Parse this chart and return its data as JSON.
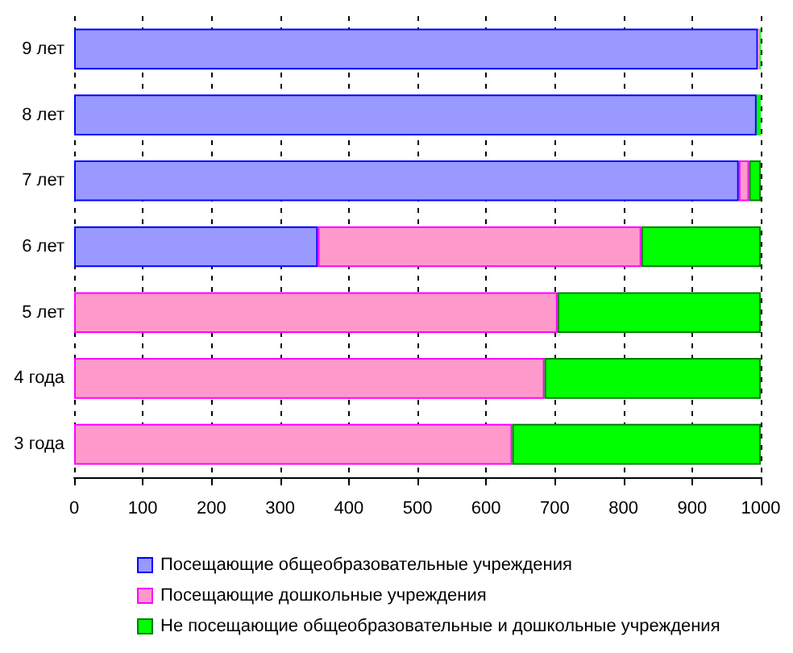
{
  "chart_data": {
    "type": "bar",
    "orientation": "horizontal",
    "stacked": true,
    "categories": [
      "9 лет",
      "8 лет",
      "7 лет",
      "6 лет",
      "5 лет",
      "4 года",
      "3 года"
    ],
    "series": [
      {
        "name": "Посещающие общеобразовательные учреждения",
        "color": "#9999ff",
        "values": [
          996,
          994,
          968,
          355,
          null,
          null,
          null
        ]
      },
      {
        "name": "Посещающие дошкольные учреждения",
        "color": "#ff99cc",
        "values": [
          2,
          null,
          15,
          471,
          704,
          685,
          638
        ]
      },
      {
        "name": "Не посещающие общеобразовательные и дошкольные учреждения",
        "color": "#00ff00",
        "values": [
          2,
          6,
          17,
          174,
          296,
          315,
          362
        ]
      }
    ],
    "xlim": [
      0,
      1000
    ],
    "xticks": [
      0,
      100,
      200,
      300,
      400,
      500,
      600,
      700,
      800,
      900,
      1000
    ],
    "grid": "x",
    "legend": "bottom"
  }
}
